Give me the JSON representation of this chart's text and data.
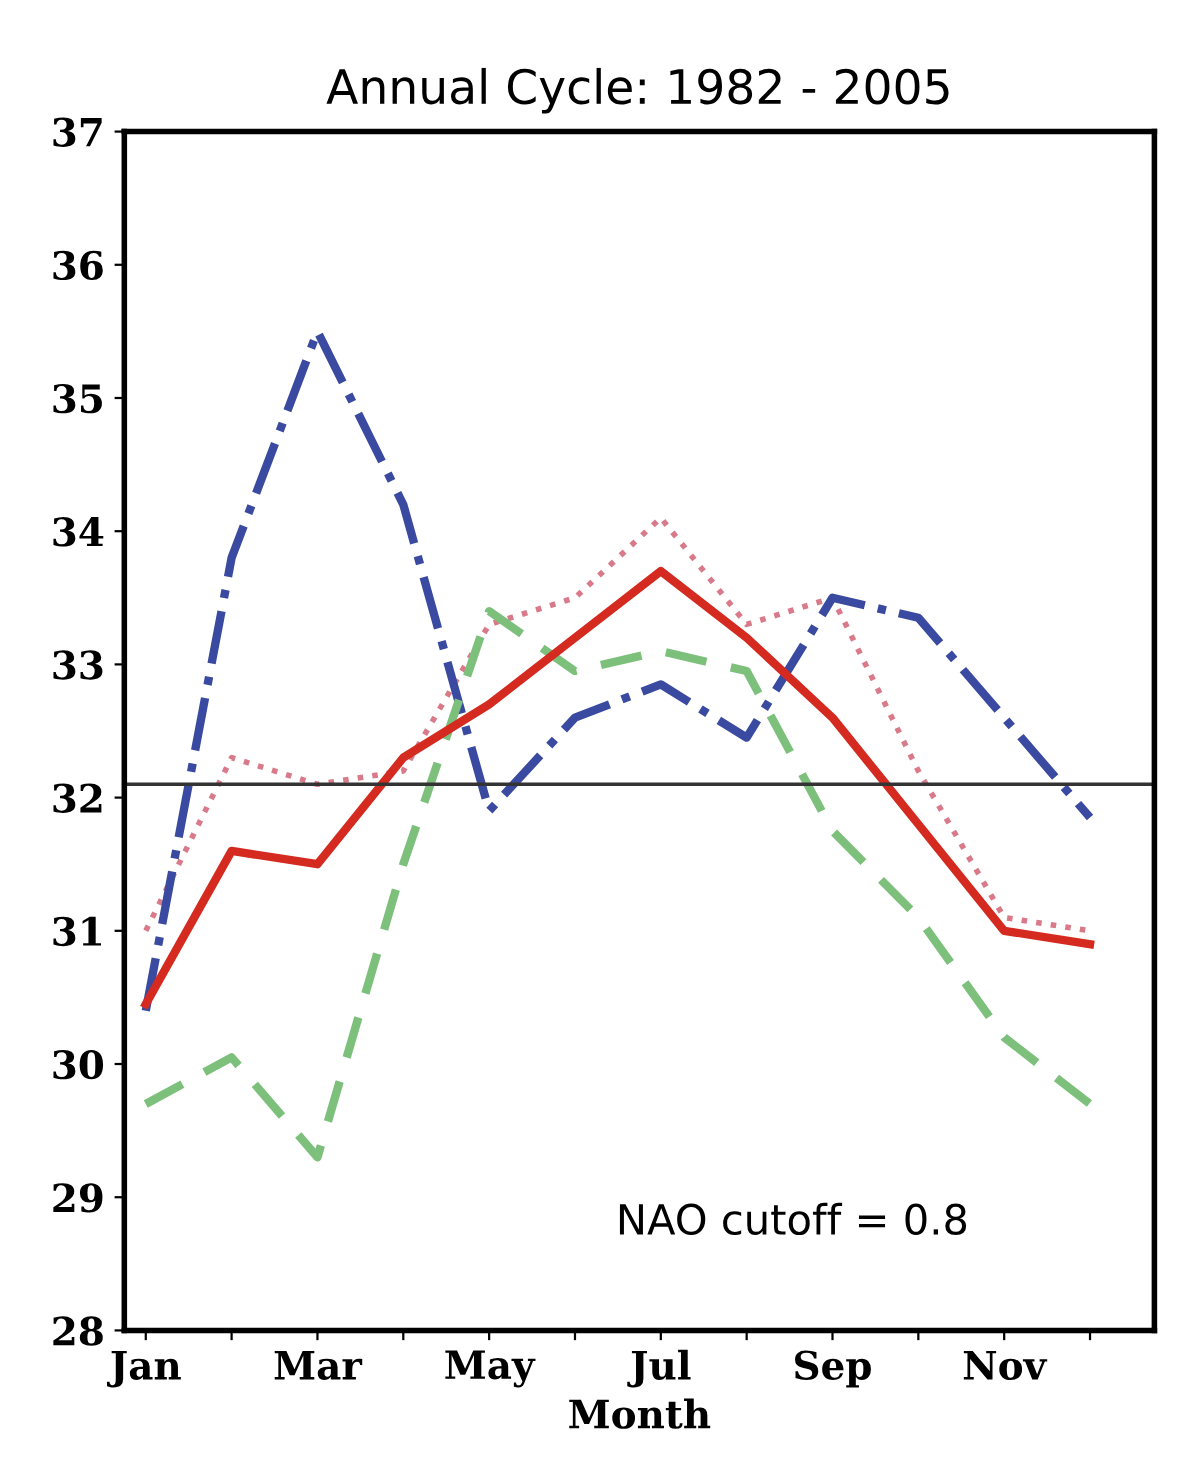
{
  "chart_data": {
    "type": "line",
    "title": "Annual Cycle: 1982 - 2005",
    "xlabel": "Month",
    "categories": [
      "Jan",
      null,
      "Mar",
      null,
      "May",
      null,
      "Jul",
      null,
      "Sep",
      null,
      "Nov",
      null
    ],
    "series": [
      {
        "color": "#d97a8a",
        "line_style": "dotted",
        "values": [
          31.0,
          32.3,
          32.1,
          32.2,
          33.3,
          33.5,
          34.1,
          33.3,
          33.5,
          32.2,
          31.1,
          31.0
        ]
      },
      {
        "color": "#3a4aa0",
        "line_style": "dashdot",
        "values": [
          30.4,
          33.8,
          35.5,
          34.2,
          31.9,
          32.6,
          32.85,
          32.45,
          33.5,
          33.35,
          32.6,
          31.85
        ]
      },
      {
        "color": "#7cc07c",
        "line_style": "dashed",
        "values": [
          29.7,
          30.05,
          29.3,
          31.5,
          33.4,
          32.95,
          33.1,
          32.95,
          31.75,
          31.1,
          30.2,
          29.7
        ]
      },
      {
        "color": "#d42a20",
        "line_style": "solid",
        "values": [
          30.45,
          31.6,
          31.5,
          32.3,
          32.7,
          33.2,
          33.7,
          33.2,
          32.6,
          31.8,
          31.0,
          30.9
        ]
      }
    ],
    "ylim": [
      28,
      37
    ],
    "yticks": [
      28,
      29,
      30,
      31,
      32,
      33,
      34,
      35,
      36,
      37
    ],
    "ref_lines": [
      {
        "axis": "y",
        "value": 32.1,
        "color": "#333333",
        "line_style": "solid"
      }
    ],
    "annotations": [
      "NAO cutoff = 0.8"
    ],
    "grid": false,
    "legend": false,
    "marker": "none"
  }
}
